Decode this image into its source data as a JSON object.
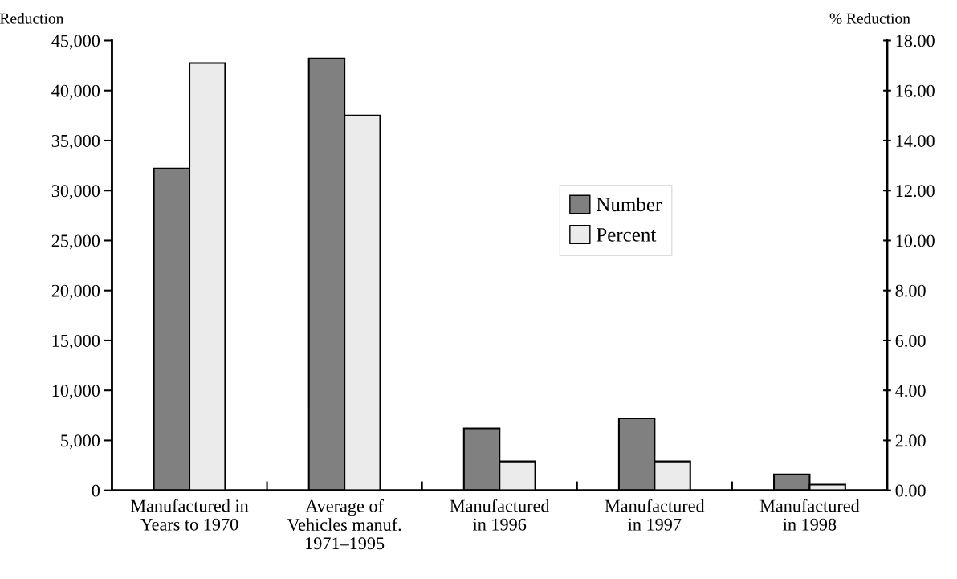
{
  "chart_data": {
    "type": "bar",
    "ylabel": "Reduction",
    "y2label": "% Reduction",
    "categories": [
      "Manufactured in\nYears to 1970",
      "Average of\nVehicles manuf.\n1971–1995",
      "Manufactured\nin 1996",
      "Manufactured\nin 1997",
      "Manufactured\nin 1998"
    ],
    "series": [
      {
        "name": "Number",
        "color": "#808080",
        "values": [
          32200,
          43200,
          6200,
          7200,
          1600
        ]
      },
      {
        "name": "Percent",
        "color": "#ebebeb",
        "axis": "y2",
        "values": [
          17.1,
          15.0,
          1.16,
          1.16,
          0.23
        ]
      }
    ],
    "ylim": [
      0,
      45000
    ],
    "yticks": [
      {
        "value": 0,
        "label": "0"
      },
      {
        "value": 5000,
        "label": "5,000"
      },
      {
        "value": 10000,
        "label": "10,000"
      },
      {
        "value": 15000,
        "label": "15,000"
      },
      {
        "value": 20000,
        "label": "20,000"
      },
      {
        "value": 25000,
        "label": "25,000"
      },
      {
        "value": 30000,
        "label": "30,000"
      },
      {
        "value": 35000,
        "label": "35,000"
      },
      {
        "value": 40000,
        "label": "40,000"
      },
      {
        "value": 45000,
        "label": "45,000"
      }
    ],
    "y2lim": [
      0,
      18
    ],
    "y2ticks": [
      {
        "value": 0,
        "label": "0.00"
      },
      {
        "value": 2,
        "label": "2.00"
      },
      {
        "value": 4,
        "label": "4.00"
      },
      {
        "value": 6,
        "label": "6.00"
      },
      {
        "value": 8,
        "label": "8.00"
      },
      {
        "value": 10,
        "label": "10.00"
      },
      {
        "value": 12,
        "label": "12.00"
      },
      {
        "value": 14,
        "label": "14.00"
      },
      {
        "value": 16,
        "label": "16.00"
      },
      {
        "value": 18,
        "label": "18.00"
      }
    ],
    "grid": false,
    "legend": "center"
  }
}
